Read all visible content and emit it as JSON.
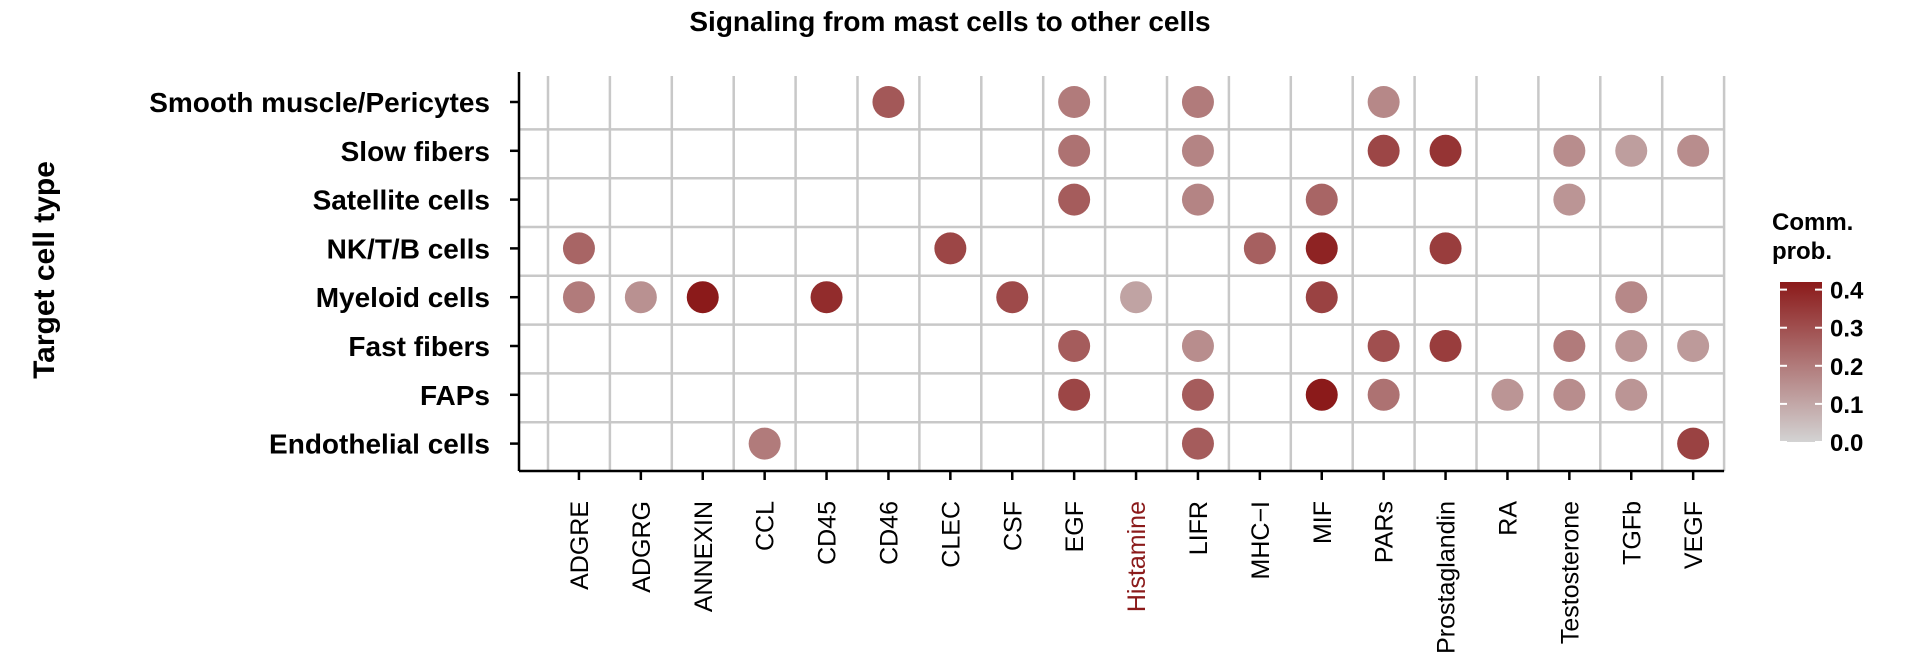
{
  "chart_data": {
    "type": "scatter",
    "title": "Signaling from mast cells to other cells",
    "ylabel": "Target cell type",
    "xlabel": "",
    "x_categories": [
      "ADGRE",
      "ADGRG",
      "ANNEXIN",
      "CCL",
      "CD45",
      "CD46",
      "CLEC",
      "CSF",
      "EGF",
      "Histamine",
      "LIFR",
      "MHC−I",
      "MIF",
      "PARs",
      "Prostaglandin",
      "RA",
      "Testosterone",
      "TGFb",
      "VEGF"
    ],
    "highlighted_x": [
      "Histamine"
    ],
    "highlight_color": "#8b1a1a",
    "y_categories": [
      "Smooth muscle/Pericytes",
      "Slow fibers",
      "Satellite cells",
      "NK/T/B cells",
      "Myeloid cells",
      "Fast fibers",
      "FAPs",
      "Endothelial cells"
    ],
    "points": [
      {
        "y": "Smooth muscle/Pericytes",
        "x": "CD46",
        "prob": 0.28
      },
      {
        "y": "Smooth muscle/Pericytes",
        "x": "EGF",
        "prob": 0.2
      },
      {
        "y": "Smooth muscle/Pericytes",
        "x": "LIFR",
        "prob": 0.2
      },
      {
        "y": "Smooth muscle/Pericytes",
        "x": "PARs",
        "prob": 0.17
      },
      {
        "y": "Slow fibers",
        "x": "EGF",
        "prob": 0.22
      },
      {
        "y": "Slow fibers",
        "x": "LIFR",
        "prob": 0.18
      },
      {
        "y": "Slow fibers",
        "x": "PARs",
        "prob": 0.32
      },
      {
        "y": "Slow fibers",
        "x": "Prostaglandin",
        "prob": 0.36
      },
      {
        "y": "Slow fibers",
        "x": "Testosterone",
        "prob": 0.16
      },
      {
        "y": "Slow fibers",
        "x": "TGFb",
        "prob": 0.12
      },
      {
        "y": "Slow fibers",
        "x": "VEGF",
        "prob": 0.16
      },
      {
        "y": "Satellite cells",
        "x": "EGF",
        "prob": 0.27
      },
      {
        "y": "Satellite cells",
        "x": "LIFR",
        "prob": 0.18
      },
      {
        "y": "Satellite cells",
        "x": "MIF",
        "prob": 0.25
      },
      {
        "y": "Satellite cells",
        "x": "Testosterone",
        "prob": 0.14
      },
      {
        "y": "NK/T/B cells",
        "x": "ADGRE",
        "prob": 0.25
      },
      {
        "y": "NK/T/B cells",
        "x": "CLEC",
        "prob": 0.32
      },
      {
        "y": "NK/T/B cells",
        "x": "MHC−I",
        "prob": 0.26
      },
      {
        "y": "NK/T/B cells",
        "x": "MIF",
        "prob": 0.4
      },
      {
        "y": "NK/T/B cells",
        "x": "Prostaglandin",
        "prob": 0.34
      },
      {
        "y": "Myeloid cells",
        "x": "ADGRE",
        "prob": 0.2
      },
      {
        "y": "Myeloid cells",
        "x": "ADGRG",
        "prob": 0.15
      },
      {
        "y": "Myeloid cells",
        "x": "ANNEXIN",
        "prob": 0.45
      },
      {
        "y": "Myeloid cells",
        "x": "CD45",
        "prob": 0.38
      },
      {
        "y": "Myeloid cells",
        "x": "CSF",
        "prob": 0.31
      },
      {
        "y": "Myeloid cells",
        "x": "Histamine",
        "prob": 0.11
      },
      {
        "y": "Myeloid cells",
        "x": "MIF",
        "prob": 0.33
      },
      {
        "y": "Myeloid cells",
        "x": "TGFb",
        "prob": 0.17
      },
      {
        "y": "Fast fibers",
        "x": "EGF",
        "prob": 0.27
      },
      {
        "y": "Fast fibers",
        "x": "LIFR",
        "prob": 0.16
      },
      {
        "y": "Fast fibers",
        "x": "PARs",
        "prob": 0.3
      },
      {
        "y": "Fast fibers",
        "x": "Prostaglandin",
        "prob": 0.34
      },
      {
        "y": "Fast fibers",
        "x": "Testosterone",
        "prob": 0.2
      },
      {
        "y": "Fast fibers",
        "x": "TGFb",
        "prob": 0.14
      },
      {
        "y": "Fast fibers",
        "x": "VEGF",
        "prob": 0.13
      },
      {
        "y": "FAPs",
        "x": "EGF",
        "prob": 0.32
      },
      {
        "y": "FAPs",
        "x": "LIFR",
        "prob": 0.27
      },
      {
        "y": "FAPs",
        "x": "MIF",
        "prob": 0.44
      },
      {
        "y": "FAPs",
        "x": "PARs",
        "prob": 0.22
      },
      {
        "y": "FAPs",
        "x": "RA",
        "prob": 0.14
      },
      {
        "y": "FAPs",
        "x": "Testosterone",
        "prob": 0.16
      },
      {
        "y": "FAPs",
        "x": "TGFb",
        "prob": 0.14
      },
      {
        "y": "Endothelial cells",
        "x": "CCL",
        "prob": 0.2
      },
      {
        "y": "Endothelial cells",
        "x": "LIFR",
        "prob": 0.27
      },
      {
        "y": "Endothelial cells",
        "x": "VEGF",
        "prob": 0.33
      }
    ],
    "color_scale": {
      "low": "#d3d3d3",
      "high": "#8b1a1a",
      "min": 0.0,
      "max": 0.42
    },
    "legend": {
      "title_line1": "Comm.",
      "title_line2": "prob.",
      "ticks": [
        "0.0",
        "0.1",
        "0.2",
        "0.3",
        "0.4"
      ],
      "tick_values": [
        0.0,
        0.1,
        0.2,
        0.3,
        0.4
      ],
      "placement": "right"
    },
    "grid": true
  }
}
